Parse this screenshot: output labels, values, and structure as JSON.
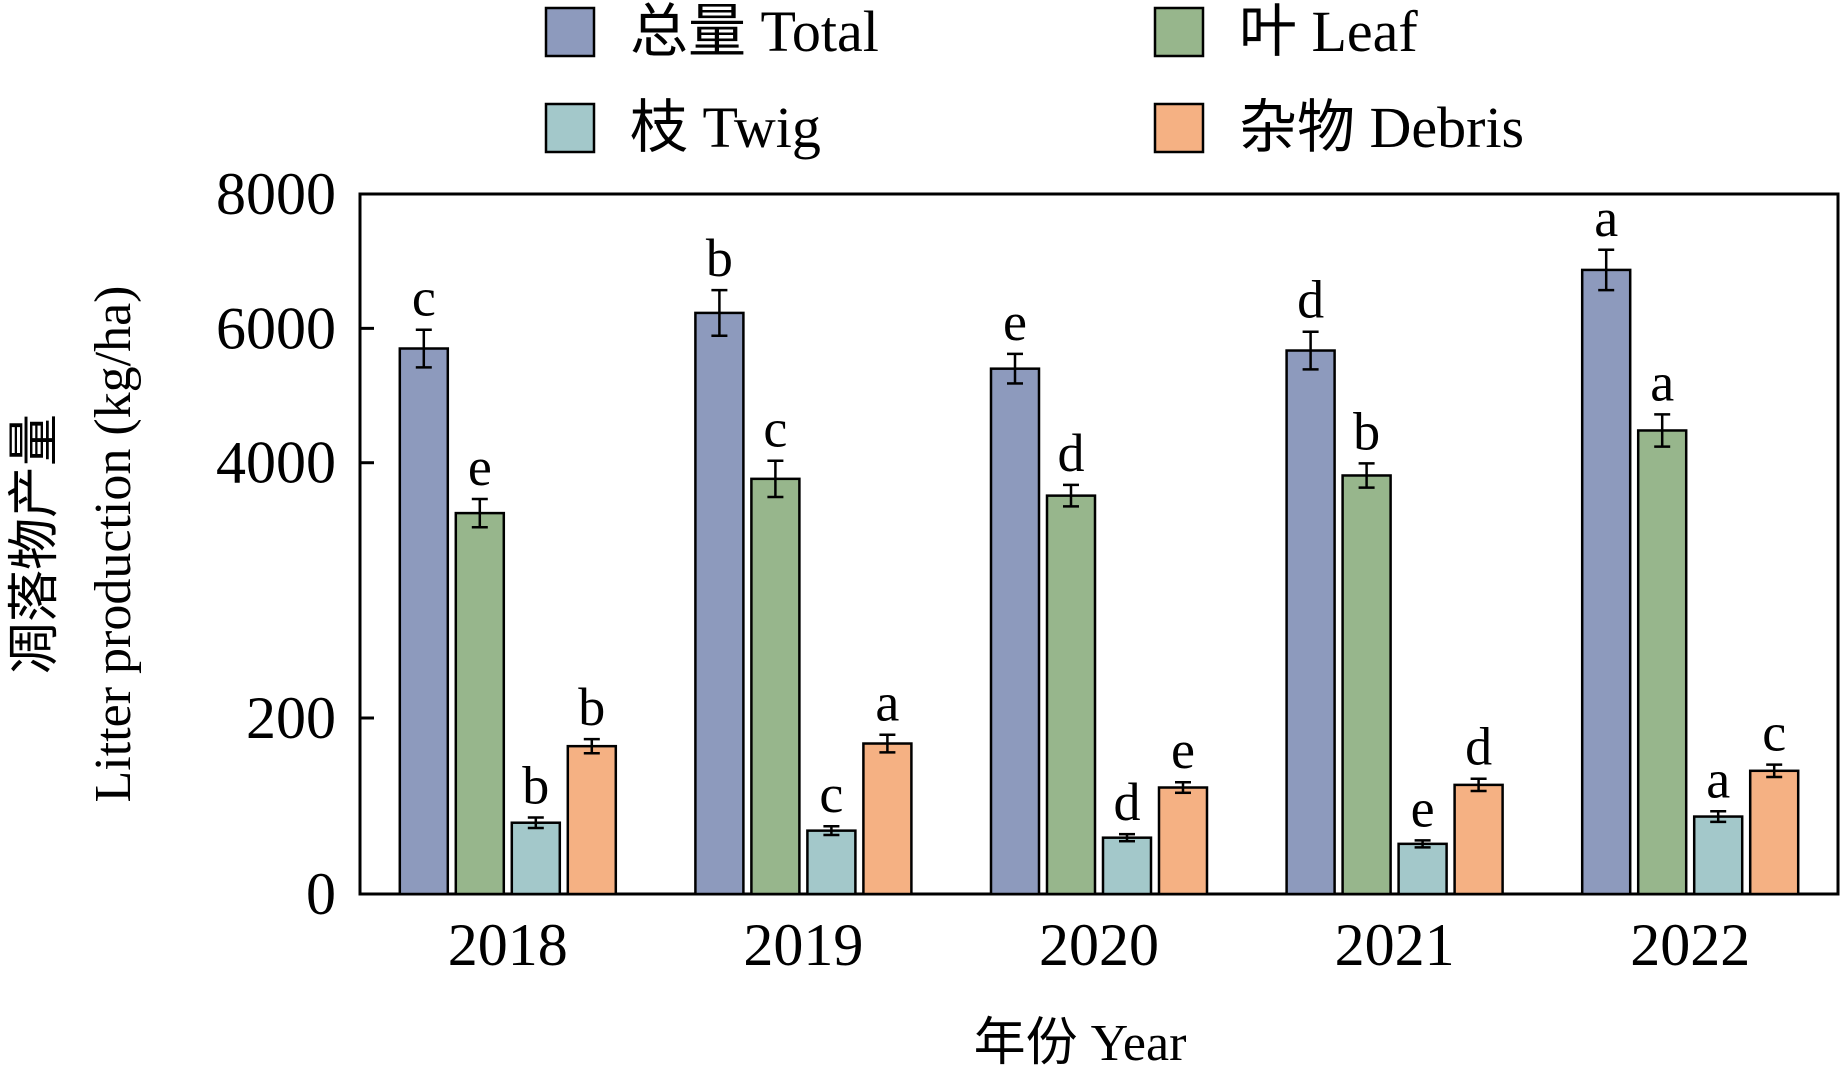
{
  "chart_data": {
    "type": "bar",
    "title": "",
    "xlabel": "年份 Year",
    "ylabel_cn": "凋落物产量",
    "ylabel_en": "Litter production (kg/ha)",
    "axis_note": "broken y-axis: lower segment 0–200, upper segment 200–8000",
    "yticks": [
      {
        "value": 0,
        "label": "0"
      },
      {
        "value": 200,
        "label": "200"
      },
      {
        "value": 4000,
        "label": "4000"
      },
      {
        "value": 6000,
        "label": "6000"
      },
      {
        "value": 8000,
        "label": "8000"
      }
    ],
    "categories": [
      "2018",
      "2019",
      "2020",
      "2021",
      "2022"
    ],
    "legend_position": "top",
    "series": [
      {
        "name": "总量 Total",
        "color": "#8D9ABD",
        "values": [
          5700,
          6230,
          5400,
          5670,
          6870
        ],
        "errors": [
          280,
          340,
          220,
          280,
          300
        ],
        "letters": [
          "c",
          "b",
          "e",
          "d",
          "a"
        ]
      },
      {
        "name": "叶 Leaf",
        "color": "#97B68C",
        "values": [
          3250,
          3760,
          3510,
          3810,
          4480
        ],
        "errors": [
          210,
          270,
          160,
          180,
          240
        ],
        "letters": [
          "e",
          "c",
          "d",
          "b",
          "a"
        ]
      },
      {
        "name": "枝 Twig",
        "color": "#A3C8CA",
        "values": [
          81,
          72,
          64,
          57,
          88
        ],
        "errors": [
          6,
          5,
          4,
          4,
          6
        ],
        "letters": [
          "b",
          "c",
          "d",
          "e",
          "a"
        ]
      },
      {
        "name": "杂物 Debris",
        "color": "#F5B183",
        "values": [
          168,
          171,
          121,
          124,
          140
        ],
        "errors": [
          8,
          10,
          6,
          7,
          7
        ],
        "letters": [
          "b",
          "a",
          "e",
          "d",
          "c"
        ]
      }
    ]
  }
}
